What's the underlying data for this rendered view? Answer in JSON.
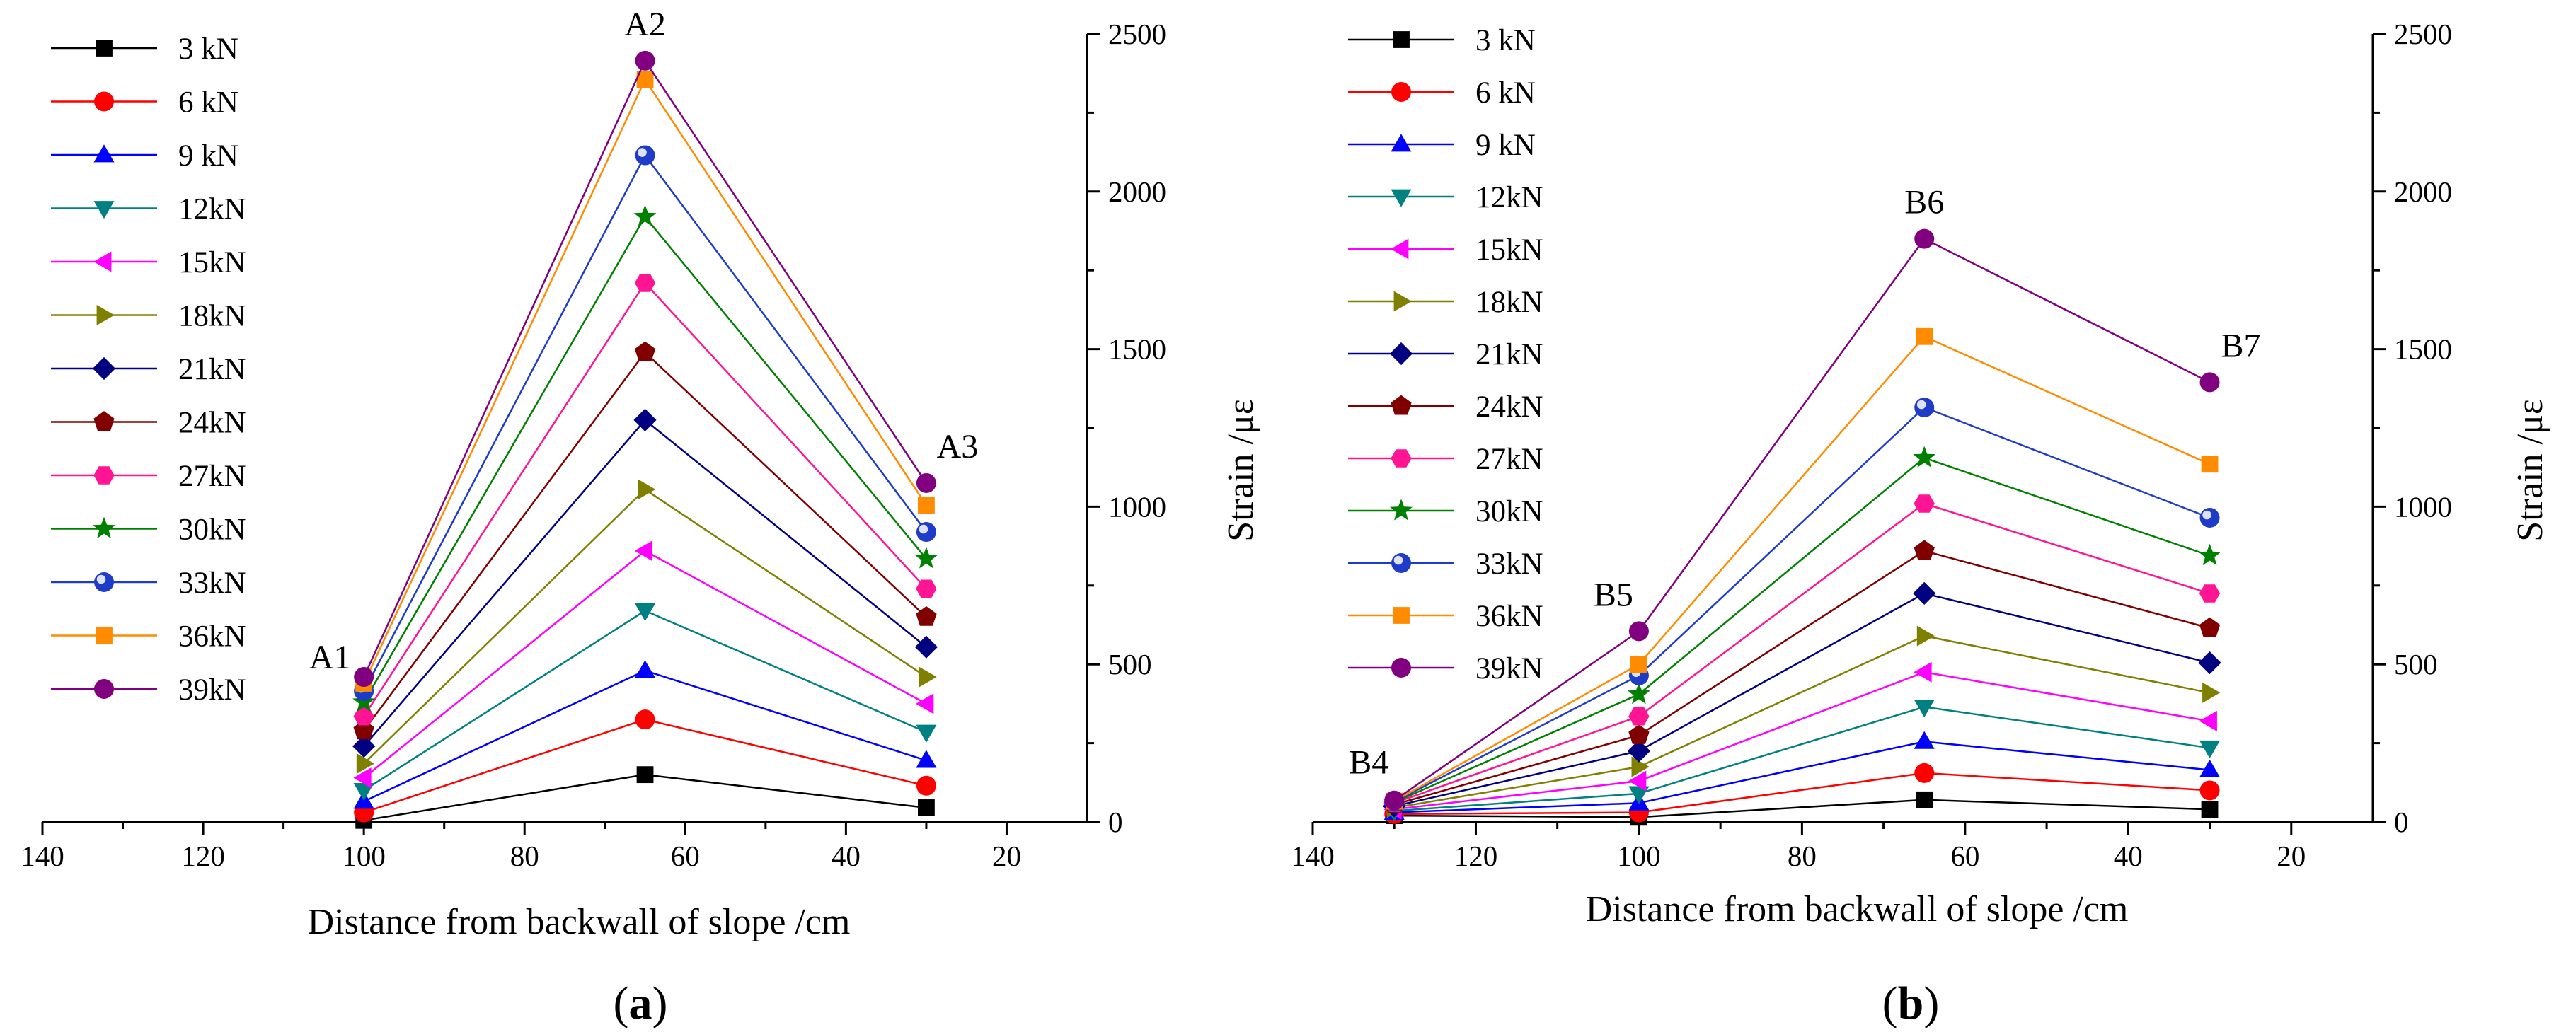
{
  "chart_data": [
    {
      "type": "line",
      "panel": "a",
      "panel_label": "a",
      "xlabel": "Distance from backwall of slope /cm",
      "ylabel": "Strain /με",
      "xlim": [
        140,
        10
      ],
      "ylim": [
        0,
        2500
      ],
      "x_ticks": [
        140,
        120,
        100,
        80,
        60,
        40,
        20
      ],
      "y_ticks": [
        0,
        500,
        1000,
        1500,
        2000,
        2500
      ],
      "y_axis_side": "right",
      "legend_position": "top-left",
      "x": [
        100,
        65,
        30
      ],
      "point_labels": [
        {
          "text": "A1",
          "x": 100
        },
        {
          "text": "A2",
          "x": 65
        },
        {
          "text": "A3",
          "x": 30
        }
      ],
      "series": [
        {
          "name": "3 kN",
          "color": "#000000",
          "marker": "square",
          "values": [
            5,
            150,
            45
          ]
        },
        {
          "name": "6 kN",
          "color": "#ff0000",
          "marker": "circle",
          "values": [
            30,
            325,
            115
          ]
        },
        {
          "name": "9 kN",
          "color": "#0000ff",
          "marker": "triangle-up",
          "values": [
            65,
            480,
            195
          ]
        },
        {
          "name": "12kN",
          "color": "#008080",
          "marker": "triangle-down",
          "values": [
            100,
            670,
            285
          ]
        },
        {
          "name": "15kN",
          "color": "#ff00ff",
          "marker": "triangle-left",
          "values": [
            140,
            860,
            375
          ]
        },
        {
          "name": "18kN",
          "color": "#808000",
          "marker": "triangle-right",
          "values": [
            185,
            1055,
            460
          ]
        },
        {
          "name": "21kN",
          "color": "#000080",
          "marker": "diamond",
          "values": [
            240,
            1275,
            555
          ]
        },
        {
          "name": "24kN",
          "color": "#800000",
          "marker": "pentagon",
          "values": [
            290,
            1490,
            650
          ]
        },
        {
          "name": "27kN",
          "color": "#ff1493",
          "marker": "hexagon",
          "values": [
            335,
            1710,
            740
          ]
        },
        {
          "name": "30kN",
          "color": "#008000",
          "marker": "star",
          "values": [
            380,
            1920,
            835
          ]
        },
        {
          "name": "33kN",
          "color": "#1e3cc8",
          "marker": "sphere",
          "values": [
            415,
            2115,
            920
          ]
        },
        {
          "name": "36kN",
          "color": "#ff8c00",
          "marker": "square",
          "values": [
            440,
            2355,
            1005
          ]
        },
        {
          "name": "39kN",
          "color": "#800080",
          "marker": "circle",
          "values": [
            460,
            2415,
            1075
          ]
        }
      ]
    },
    {
      "type": "line",
      "panel": "b",
      "panel_label": "b",
      "xlabel": "Distance from backwall of slope /cm",
      "ylabel": "Strain /με",
      "xlim": [
        140,
        10
      ],
      "ylim": [
        0,
        2500
      ],
      "x_ticks": [
        140,
        120,
        100,
        80,
        60,
        40,
        20
      ],
      "y_ticks": [
        0,
        500,
        1000,
        1500,
        2000,
        2500
      ],
      "y_axis_side": "right",
      "legend_position": "top-left",
      "x": [
        130,
        100,
        65,
        30
      ],
      "point_labels": [
        {
          "text": "B4",
          "x": 130
        },
        {
          "text": "B5",
          "x": 100
        },
        {
          "text": "B6",
          "x": 65
        },
        {
          "text": "B7",
          "x": 30
        }
      ],
      "series": [
        {
          "name": "3 kN",
          "color": "#000000",
          "marker": "square",
          "values": [
            20,
            15,
            70,
            40
          ]
        },
        {
          "name": "6 kN",
          "color": "#ff0000",
          "marker": "circle",
          "values": [
            25,
            30,
            155,
            100
          ]
        },
        {
          "name": "9 kN",
          "color": "#0000ff",
          "marker": "triangle-up",
          "values": [
            30,
            60,
            255,
            165
          ]
        },
        {
          "name": "12kN",
          "color": "#008080",
          "marker": "triangle-down",
          "values": [
            35,
            90,
            365,
            235
          ]
        },
        {
          "name": "15kN",
          "color": "#ff00ff",
          "marker": "triangle-left",
          "values": [
            40,
            130,
            475,
            320
          ]
        },
        {
          "name": "18kN",
          "color": "#808000",
          "marker": "triangle-right",
          "values": [
            45,
            175,
            590,
            410
          ]
        },
        {
          "name": "21kN",
          "color": "#000080",
          "marker": "diamond",
          "values": [
            50,
            225,
            725,
            505
          ]
        },
        {
          "name": "24kN",
          "color": "#800000",
          "marker": "pentagon",
          "values": [
            55,
            275,
            860,
            615
          ]
        },
        {
          "name": "27kN",
          "color": "#ff1493",
          "marker": "hexagon",
          "values": [
            60,
            335,
            1010,
            725
          ]
        },
        {
          "name": "30kN",
          "color": "#008000",
          "marker": "star",
          "values": [
            62,
            405,
            1155,
            845
          ]
        },
        {
          "name": "33kN",
          "color": "#1e3cc8",
          "marker": "sphere",
          "values": [
            64,
            465,
            1315,
            965
          ]
        },
        {
          "name": "36kN",
          "color": "#ff8c00",
          "marker": "square",
          "values": [
            66,
            500,
            1540,
            1135
          ]
        },
        {
          "name": "39kN",
          "color": "#800080",
          "marker": "circle",
          "values": [
            68,
            605,
            1850,
            1395
          ]
        }
      ]
    }
  ]
}
